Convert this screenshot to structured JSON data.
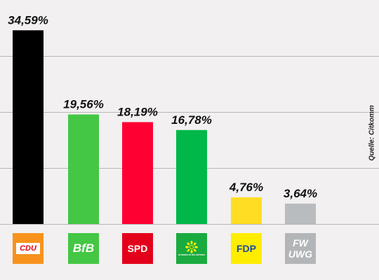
{
  "chart_data": {
    "type": "bar",
    "categories": [
      "CDU",
      "BfB",
      "SPD",
      "Grüne",
      "FDP",
      "FW UWG"
    ],
    "values": [
      34.59,
      19.56,
      18.19,
      16.78,
      4.76,
      3.64
    ],
    "value_labels": [
      "34,59%",
      "19,56%",
      "18,19%",
      "16,78%",
      "4,76%",
      "3,64%"
    ],
    "colors": [
      "#000000",
      "#44c744",
      "#ff0033",
      "#00b84a",
      "#ffdd22",
      "#b8bcbe"
    ],
    "ylim": [
      0,
      40
    ],
    "yticks": [
      0,
      10,
      20,
      30
    ],
    "grid": true,
    "source": "Quelle: Citkomm"
  },
  "logos": {
    "cdu": "CDU",
    "bfb": "BfB",
    "spd": "SPD",
    "gruene": "BÜNDNIS 90 DIE GRÜNEN",
    "fdp": "FDP",
    "fw_line1": "FW",
    "fw_line2": "UWG"
  }
}
